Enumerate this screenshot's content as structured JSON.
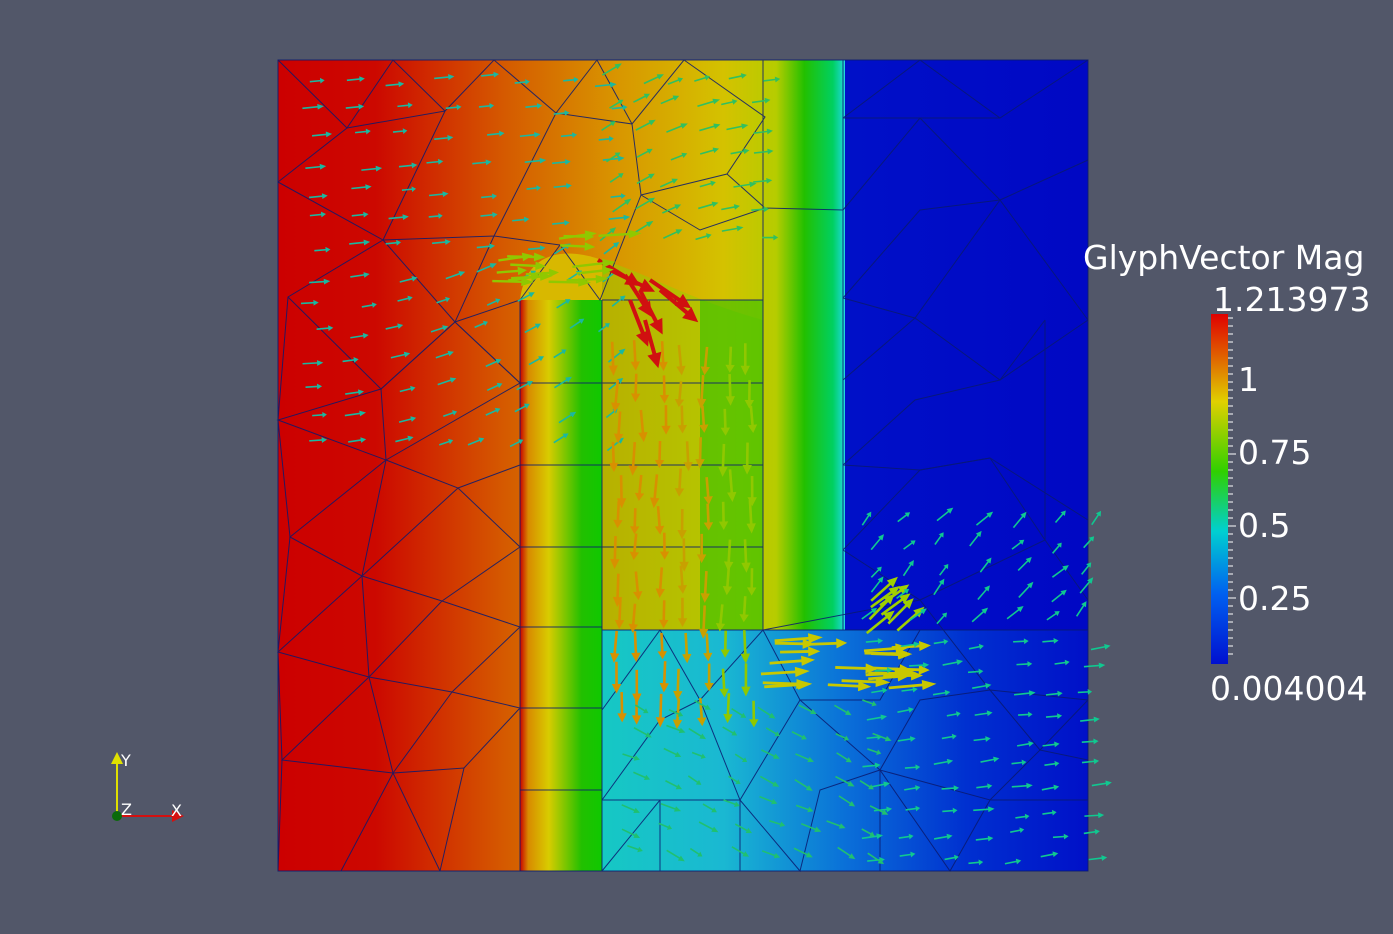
{
  "scalar_bar": {
    "title": "GlyphVector Mag",
    "max_label": "1.213973",
    "min_label": "0.004004",
    "tick_labels": [
      "1",
      "0.75",
      "0.5",
      "0.25"
    ],
    "colors": [
      "#d40000",
      "#e07000",
      "#e0d000",
      "#00c800",
      "#00e0e0",
      "#0040f0",
      "#0010d0"
    ]
  },
  "axes_triad": {
    "y_label": "Y",
    "z_label": "Z",
    "x_label": "X",
    "x_color": "#d41010",
    "y_color": "#e0e000",
    "z_color": "#0a6a0a"
  },
  "scene": {
    "background": "#525769",
    "field_colors": {
      "red": "#cc0000",
      "orange": "#e07000",
      "yellow": "#d8c200",
      "green": "#22c000",
      "cyan": "#1ad0cc",
      "blue": "#0010c8"
    },
    "mesh_color": "#0a1a70"
  }
}
